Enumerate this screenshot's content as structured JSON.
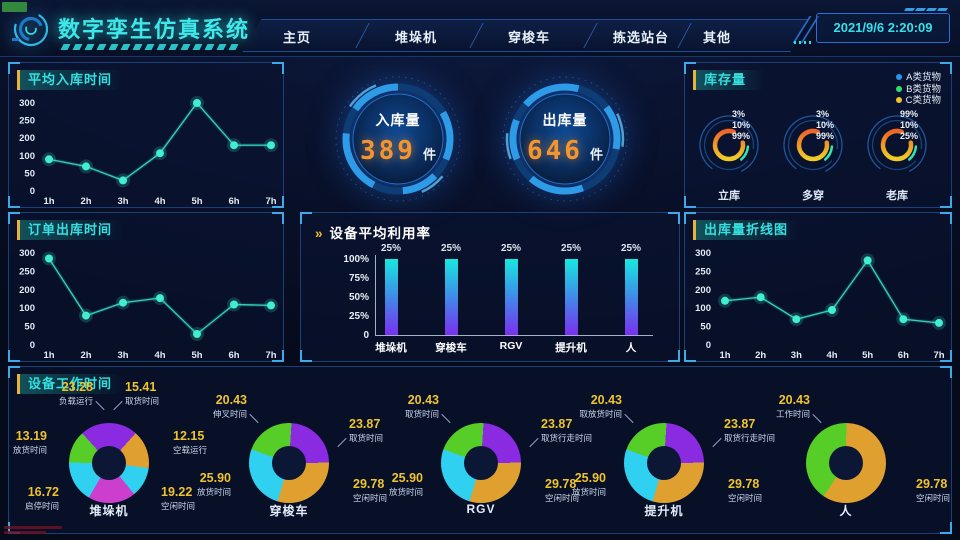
{
  "header": {
    "title": "数字孪生仿真系统",
    "nav": [
      "主页",
      "堆垛机",
      "穿梭车",
      "拣选站台",
      "其他"
    ],
    "datetime": "2021/9/6 2:20:09"
  },
  "gauges": [
    {
      "label": "入库量",
      "value": "389",
      "unit": "件"
    },
    {
      "label": "出库量",
      "value": "646",
      "unit": "件"
    }
  ],
  "chart_data": [
    {
      "id": "avg_in",
      "type": "line",
      "title": "平均入库时间",
      "x": [
        "1h",
        "2h",
        "3h",
        "4h",
        "5h",
        "6h",
        "7h"
      ],
      "values": [
        90,
        70,
        30,
        115,
        300,
        160,
        160
      ],
      "yticks": [
        "0",
        "50",
        "100",
        "200",
        "250",
        "300"
      ],
      "line_color": "#35d6be"
    },
    {
      "id": "order_out",
      "type": "line",
      "title": "订单出库时间",
      "x": [
        "1h",
        "2h",
        "3h",
        "4h",
        "5h",
        "6h",
        "7h"
      ],
      "values": [
        285,
        80,
        130,
        155,
        30,
        120,
        115
      ],
      "yticks": [
        "0",
        "50",
        "100",
        "200",
        "250",
        "300"
      ],
      "line_color": "#35d6be"
    },
    {
      "id": "out_line",
      "type": "line",
      "title": "出库量折线图",
      "x": [
        "1h",
        "2h",
        "3h",
        "4h",
        "5h",
        "6h",
        "7h"
      ],
      "values": [
        140,
        160,
        70,
        95,
        280,
        70,
        60
      ],
      "yticks": [
        "0",
        "50",
        "100",
        "200",
        "250",
        "300"
      ],
      "line_color": "#35d6be"
    },
    {
      "id": "util",
      "type": "bar",
      "title": "设备平均利用率",
      "title_prefix": "»",
      "categories": [
        "堆垛机",
        "穿梭车",
        "RGV",
        "提升机",
        "人"
      ],
      "values": [
        "25%",
        "25%",
        "25%",
        "25%",
        "25%"
      ],
      "yticks": [
        "0",
        "25%",
        "50%",
        "75%",
        "100%"
      ]
    },
    {
      "id": "inventory",
      "type": "rings",
      "title": "库存量",
      "legend": [
        {
          "label": "A类货物",
          "color": "#2196f3"
        },
        {
          "label": "B类货物",
          "color": "#2ee06e"
        },
        {
          "label": "C类货物",
          "color": "#f0c428"
        }
      ],
      "groups": [
        {
          "label": "立库",
          "pcts": [
            "3%",
            "10%",
            "99%"
          ]
        },
        {
          "label": "多穿",
          "pcts": [
            "3%",
            "10%",
            "99%"
          ]
        },
        {
          "label": "老库",
          "pcts": [
            "99%",
            "10%",
            "25%"
          ]
        }
      ]
    },
    {
      "id": "worktime",
      "type": "donuts",
      "title": "设备工作时间",
      "charts": [
        {
          "label": "堆垛机",
          "slices": [
            {
              "name": "负载运行",
              "value": "23.28",
              "color": "#8a2be2"
            },
            {
              "name": "取货时间",
              "value": "15.41",
              "color": "#e0a030"
            },
            {
              "name": "空载运行",
              "value": "12.15",
              "color": "#2fd0f0"
            },
            {
              "name": "空闲时间",
              "value": "19.22",
              "color": "#cc3fce"
            },
            {
              "name": "启停时间",
              "value": "16.72",
              "color": "#2fd0f0"
            },
            {
              "name": "放货时间",
              "value": "13.19",
              "color": "#56ce27"
            }
          ]
        },
        {
          "label": "穿梭车",
          "slices": [
            {
              "name": "伸叉时间",
              "value": "20.43",
              "color": "#56ce27"
            },
            {
              "name": "取货时间",
              "value": "23.87",
              "color": "#8a2be2"
            },
            {
              "name": "空闲时间",
              "value": "29.78",
              "color": "#e0a030"
            },
            {
              "name": "放货时间",
              "value": "25.90",
              "color": "#2fd0f0"
            }
          ]
        },
        {
          "label": "RGV",
          "slices": [
            {
              "name": "取货时间",
              "value": "20.43",
              "color": "#56ce27"
            },
            {
              "name": "取货行走时间",
              "value": "23.87",
              "color": "#8a2be2"
            },
            {
              "name": "空闲时间",
              "value": "29.78",
              "color": "#e0a030"
            },
            {
              "name": "放货时间",
              "value": "25.90",
              "color": "#2fd0f0"
            }
          ]
        },
        {
          "label": "提升机",
          "slices": [
            {
              "name": "取放货时间",
              "value": "20.43",
              "color": "#56ce27"
            },
            {
              "name": "取货行走时间",
              "value": "23.87",
              "color": "#8a2be2"
            },
            {
              "name": "空闲时间",
              "value": "29.78",
              "color": "#e0a030"
            },
            {
              "name": "放货时间",
              "value": "25.90",
              "color": "#2fd0f0"
            }
          ]
        },
        {
          "label": "人",
          "slices": [
            {
              "name": "工作时间",
              "value": "20.43",
              "color": "#56ce27"
            },
            {
              "name": "空闲时间",
              "value": "29.78",
              "color": "#e0a030"
            }
          ]
        }
      ]
    }
  ]
}
